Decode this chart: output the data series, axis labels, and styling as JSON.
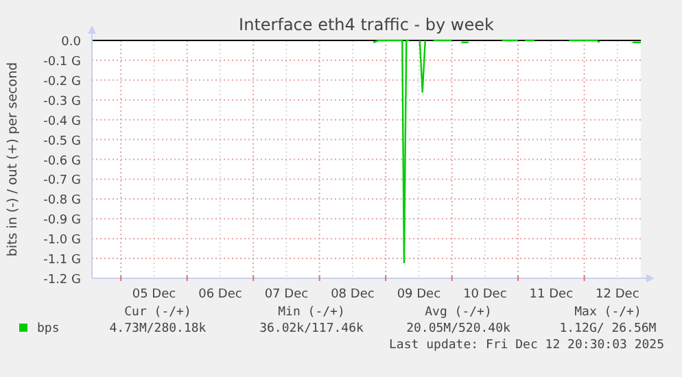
{
  "chart_data": {
    "type": "line",
    "title": "Interface eth4 traffic - by week",
    "ylabel": "bits in (-) / out (+) per second",
    "x": [
      "2025-12-08T19:30",
      "2025-12-08T21:30",
      "2025-12-09T06:00",
      "2025-12-09T06:40",
      "2025-12-09T07:30",
      "2025-12-09T08:30",
      "2025-12-09T10:00",
      "2025-12-09T12:20",
      "2025-12-09T13:20",
      "2025-12-09T14:20",
      "2025-12-09T15:30",
      "2025-12-09T17:20",
      "2025-12-10T00:00",
      "2025-12-10T02:00",
      "2025-12-10T03:30",
      "2025-12-10T06:00",
      "2025-12-10T12:00",
      "2025-12-10T18:10",
      "2025-12-11T00:00",
      "2025-12-11T01:00",
      "2025-12-11T02:30",
      "2025-12-11T06:00",
      "2025-12-11T12:00",
      "2025-12-11T18:30",
      "2025-12-12T04:30",
      "2025-12-12T05:30",
      "2025-12-12T12:00",
      "2025-12-12T17:30",
      "2025-12-12T20:30"
    ],
    "series": [
      {
        "name": "bps",
        "color": "#00cc00",
        "values": [
          -0.01,
          0,
          0,
          -1.12,
          0,
          0,
          null,
          0,
          -0.26,
          0,
          null,
          0,
          0,
          null,
          -0.01,
          -0.01,
          null,
          0,
          0,
          null,
          0,
          0,
          null,
          0,
          0,
          -0.01,
          null,
          -0.01,
          -0.01
        ]
      }
    ],
    "xlim": [
      "2025-12-04T13:30",
      "2025-12-12T20:30"
    ],
    "xticks": [
      {
        "value": "2025-12-05T00:00",
        "label": null
      },
      {
        "value": "2025-12-05T12:00",
        "label": "05 Dec"
      },
      {
        "value": "2025-12-06T00:00",
        "label": null
      },
      {
        "value": "2025-12-06T12:00",
        "label": "06 Dec"
      },
      {
        "value": "2025-12-07T00:00",
        "label": null
      },
      {
        "value": "2025-12-07T12:00",
        "label": "07 Dec"
      },
      {
        "value": "2025-12-08T00:00",
        "label": null
      },
      {
        "value": "2025-12-08T12:00",
        "label": "08 Dec"
      },
      {
        "value": "2025-12-09T00:00",
        "label": null
      },
      {
        "value": "2025-12-09T12:00",
        "label": "09 Dec"
      },
      {
        "value": "2025-12-10T00:00",
        "label": null
      },
      {
        "value": "2025-12-10T12:00",
        "label": "10 Dec"
      },
      {
        "value": "2025-12-11T00:00",
        "label": null
      },
      {
        "value": "2025-12-11T12:00",
        "label": "11 Dec"
      },
      {
        "value": "2025-12-12T00:00",
        "label": null
      },
      {
        "value": "2025-12-12T12:00",
        "label": "12 Dec"
      }
    ],
    "ylim": [
      -1.2,
      0
    ],
    "yticks": [
      {
        "value": 0,
        "label": "0.0"
      },
      {
        "value": -0.1,
        "label": "-0.1 G"
      },
      {
        "value": -0.2,
        "label": "-0.2 G"
      },
      {
        "value": -0.3,
        "label": "-0.3 G"
      },
      {
        "value": -0.4,
        "label": "-0.4 G"
      },
      {
        "value": -0.5,
        "label": "-0.5 G"
      },
      {
        "value": -0.6,
        "label": "-0.6 G"
      },
      {
        "value": -0.7,
        "label": "-0.7 G"
      },
      {
        "value": -0.8,
        "label": "-0.8 G"
      },
      {
        "value": -0.9,
        "label": "-0.9 G"
      },
      {
        "value": -1.0,
        "label": "-1.0 G"
      },
      {
        "value": -1.1,
        "label": "-1.1 G"
      },
      {
        "value": -1.2,
        "label": "-1.2 G"
      }
    ],
    "grid": true,
    "legend": "bottom",
    "marker": "none",
    "line_style": "solid",
    "annotations": [
      "Cur (-/+)",
      "Min (-/+)",
      "Avg (-/+)",
      "Max (-/+)",
      "4.73M/280.18k",
      "36.02k/117.46k",
      "20.05M/520.40k",
      "1.12G/ 26.56M",
      "Last update: Fri Dec 12 20:30:03 2025"
    ]
  }
}
